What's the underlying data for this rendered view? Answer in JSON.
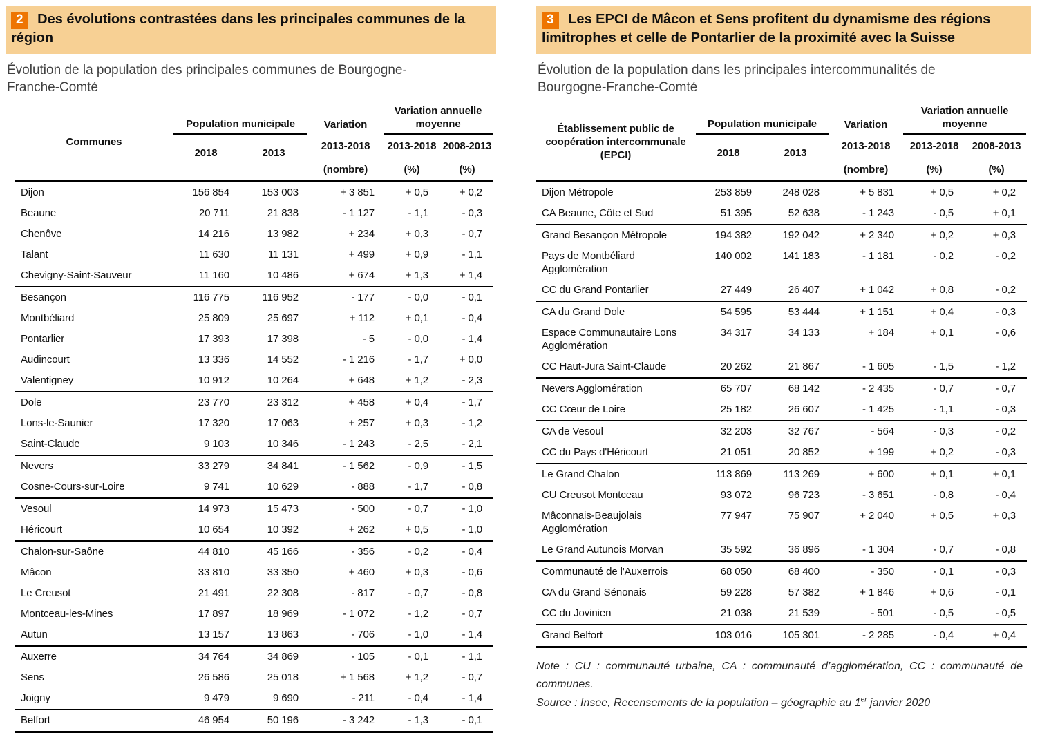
{
  "colors": {
    "band_bg": "#F7D094",
    "badge_bg": "#EE7502",
    "badge_text": "#FFFFFF",
    "rule": "#000000",
    "subtitle_text": "#3F3F3F"
  },
  "figure2": {
    "number": "2",
    "title": "Des évolutions contrastées dans les principales communes de la région",
    "subtitle": "Évolution de la population des principales communes de Bourgogne-Franche-Comté",
    "table": {
      "col1_header": "Communes",
      "population_group": "Population municipale",
      "year_2018": "2018",
      "year_2013": "2013",
      "variation_line1": "Variation",
      "variation_line2": "2013-2018",
      "variation_line3": "(nombre)",
      "variation_annuelle_group": "Variation annuelle moyenne",
      "col_2013_2018": "2013-2018",
      "col_2008_2013": "2008-2013",
      "percent_unit": "(%)",
      "groups": [
        [
          [
            "Dijon",
            "156 854",
            "153 003",
            "+ 3 851",
            "+ 0,5",
            "+ 0,2"
          ],
          [
            "Beaune",
            "20 711",
            "21 838",
            "- 1 127",
            "- 1,1",
            "- 0,3"
          ],
          [
            "Chenôve",
            "14 216",
            "13 982",
            "+ 234",
            "+ 0,3",
            "- 0,7"
          ],
          [
            "Talant",
            "11 630",
            "11 131",
            "+ 499",
            "+ 0,9",
            "- 1,1"
          ],
          [
            "Chevigny-Saint-Sauveur",
            "11 160",
            "10 486",
            "+ 674",
            "+ 1,3",
            "+ 1,4"
          ]
        ],
        [
          [
            "Besançon",
            "116 775",
            "116 952",
            "- 177",
            "- 0,0",
            "- 0,1"
          ],
          [
            "Montbéliard",
            "25 809",
            "25 697",
            "+ 112",
            "+ 0,1",
            "- 0,4"
          ],
          [
            "Pontarlier",
            "17 393",
            "17 398",
            "- 5",
            "- 0,0",
            "- 1,4"
          ],
          [
            "Audincourt",
            "13 336",
            "14 552",
            "- 1 216",
            "- 1,7",
            "+ 0,0"
          ],
          [
            "Valentigney",
            "10 912",
            "10 264",
            "+ 648",
            "+ 1,2",
            "- 2,3"
          ]
        ],
        [
          [
            "Dole",
            "23 770",
            "23 312",
            "+ 458",
            "+ 0,4",
            "- 1,7"
          ],
          [
            "Lons-le-Saunier",
            "17 320",
            "17 063",
            "+ 257",
            "+ 0,3",
            "- 1,2"
          ],
          [
            "Saint-Claude",
            "9 103",
            "10 346",
            "- 1 243",
            "- 2,5",
            "- 2,1"
          ]
        ],
        [
          [
            "Nevers",
            "33 279",
            "34 841",
            "- 1 562",
            "- 0,9",
            "- 1,5"
          ],
          [
            "Cosne-Cours-sur-Loire",
            "9 741",
            "10 629",
            "- 888",
            "- 1,7",
            "- 0,8"
          ]
        ],
        [
          [
            "Vesoul",
            "14 973",
            "15 473",
            "- 500",
            "- 0,7",
            "- 1,0"
          ],
          [
            "Héricourt",
            "10 654",
            "10 392",
            "+ 262",
            "+ 0,5",
            "- 1,0"
          ]
        ],
        [
          [
            "Chalon-sur-Saône",
            "44 810",
            "45 166",
            "- 356",
            "- 0,2",
            "- 0,4"
          ],
          [
            "Mâcon",
            "33 810",
            "33 350",
            "+ 460",
            "+ 0,3",
            "- 0,6"
          ],
          [
            "Le Creusot",
            "21 491",
            "22 308",
            "- 817",
            "- 0,7",
            "- 0,8"
          ],
          [
            "Montceau-les-Mines",
            "17 897",
            "18 969",
            "- 1 072",
            "- 1,2",
            "- 0,7"
          ],
          [
            "Autun",
            "13 157",
            "13 863",
            "- 706",
            "- 1,0",
            "- 1,4"
          ]
        ],
        [
          [
            "Auxerre",
            "34 764",
            "34 869",
            "- 105",
            "- 0,1",
            "- 1,1"
          ],
          [
            "Sens",
            "26 586",
            "25 018",
            "+ 1 568",
            "+ 1,2",
            "- 0,7"
          ],
          [
            "Joigny",
            "9 479",
            "9 690",
            "- 211",
            "- 0,4",
            "- 1,4"
          ]
        ],
        [
          [
            "Belfort",
            "46 954",
            "50 196",
            "- 3 242",
            "- 1,3",
            "- 0,1"
          ]
        ]
      ]
    }
  },
  "figure3": {
    "number": "3",
    "title": "Les EPCI de Mâcon et Sens profitent du dynamisme des régions limitrophes et celle de Pontarlier de la proximité avec la Suisse",
    "subtitle": "Évolution de la population dans les principales intercommunalités de Bourgogne-Franche-Comté",
    "table": {
      "col1_header": "Établissement public de coopération intercommunale (EPCI)",
      "population_group": "Population municipale",
      "year_2018": "2018",
      "year_2013": "2013",
      "variation_line1": "Variation",
      "variation_line2": "2013-2018",
      "variation_line3": "(nombre)",
      "variation_annuelle_group": "Variation annuelle moyenne",
      "col_2013_2018": "2013-2018",
      "col_2008_2013": "2008-2013",
      "percent_unit": "(%)",
      "groups": [
        [
          [
            "Dijon Métropole",
            "253 859",
            "248 028",
            "+ 5 831",
            "+ 0,5",
            "+ 0,2"
          ],
          [
            "CA Beaune, Côte et Sud",
            "51 395",
            "52 638",
            "- 1 243",
            "- 0,5",
            "+ 0,1"
          ]
        ],
        [
          [
            "Grand Besançon Métropole",
            "194 382",
            "192 042",
            "+ 2 340",
            "+ 0,2",
            "+ 0,3"
          ],
          [
            "Pays de Montbéliard Agglomération",
            "140 002",
            "141 183",
            "- 1 181",
            "- 0,2",
            "- 0,2"
          ],
          [
            "CC du Grand Pontarlier",
            "27 449",
            "26 407",
            "+ 1 042",
            "+ 0,8",
            "- 0,2"
          ]
        ],
        [
          [
            "CA du Grand Dole",
            "54 595",
            "53 444",
            "+ 1 151",
            "+ 0,4",
            "- 0,3"
          ],
          [
            "Espace Communautaire Lons Agglomération",
            "34 317",
            "34 133",
            "+ 184",
            "+ 0,1",
            "- 0,6"
          ],
          [
            "CC Haut-Jura Saint-Claude",
            "20 262",
            "21 867",
            "- 1 605",
            "- 1,5",
            "- 1,2"
          ]
        ],
        [
          [
            "Nevers Agglomération",
            "65 707",
            "68 142",
            "- 2 435",
            "- 0,7",
            "- 0,7"
          ],
          [
            "CC Cœur de Loire",
            "25 182",
            "26 607",
            "- 1 425",
            "- 1,1",
            "- 0,3"
          ]
        ],
        [
          [
            "CA de Vesoul",
            "32 203",
            "32 767",
            "- 564",
            "- 0,3",
            "- 0,2"
          ],
          [
            "CC du Pays d'Héricourt",
            "21 051",
            "20 852",
            "+ 199",
            "+ 0,2",
            "- 0,3"
          ]
        ],
        [
          [
            "Le Grand Chalon",
            "113 869",
            "113 269",
            "+ 600",
            "+ 0,1",
            "+ 0,1"
          ],
          [
            "CU Creusot Montceau",
            "93 072",
            "96 723",
            "- 3 651",
            "- 0,8",
            "- 0,4"
          ],
          [
            "Mâconnais-Beaujolais Agglomération",
            "77 947",
            "75 907",
            "+ 2 040",
            "+ 0,5",
            "+ 0,3"
          ],
          [
            "Le Grand Autunois Morvan",
            "35 592",
            "36 896",
            "- 1 304",
            "- 0,7",
            "- 0,8"
          ]
        ],
        [
          [
            "Communauté de l'Auxerrois",
            "68 050",
            "68 400",
            "- 350",
            "- 0,1",
            "- 0,3"
          ],
          [
            "CA du Grand Sénonais",
            "59 228",
            "57 382",
            "+ 1 846",
            "+ 0,6",
            "- 0,1"
          ],
          [
            "CC du Jovinien",
            "21 038",
            "21 539",
            "- 501",
            "- 0,5",
            "- 0,5"
          ]
        ],
        [
          [
            "Grand Belfort",
            "103 016",
            "105 301",
            "- 2 285",
            "- 0,4",
            "+ 0,4"
          ]
        ]
      ]
    },
    "notes": {
      "note_text": "Note : CU : communauté urbaine, CA : communauté d’agglomération, CC : communauté de communes.",
      "source_prefix": "Source : Insee, Recensements de la population – géographie au 1",
      "source_sup": "er",
      "source_suffix": " janvier 2020"
    }
  }
}
